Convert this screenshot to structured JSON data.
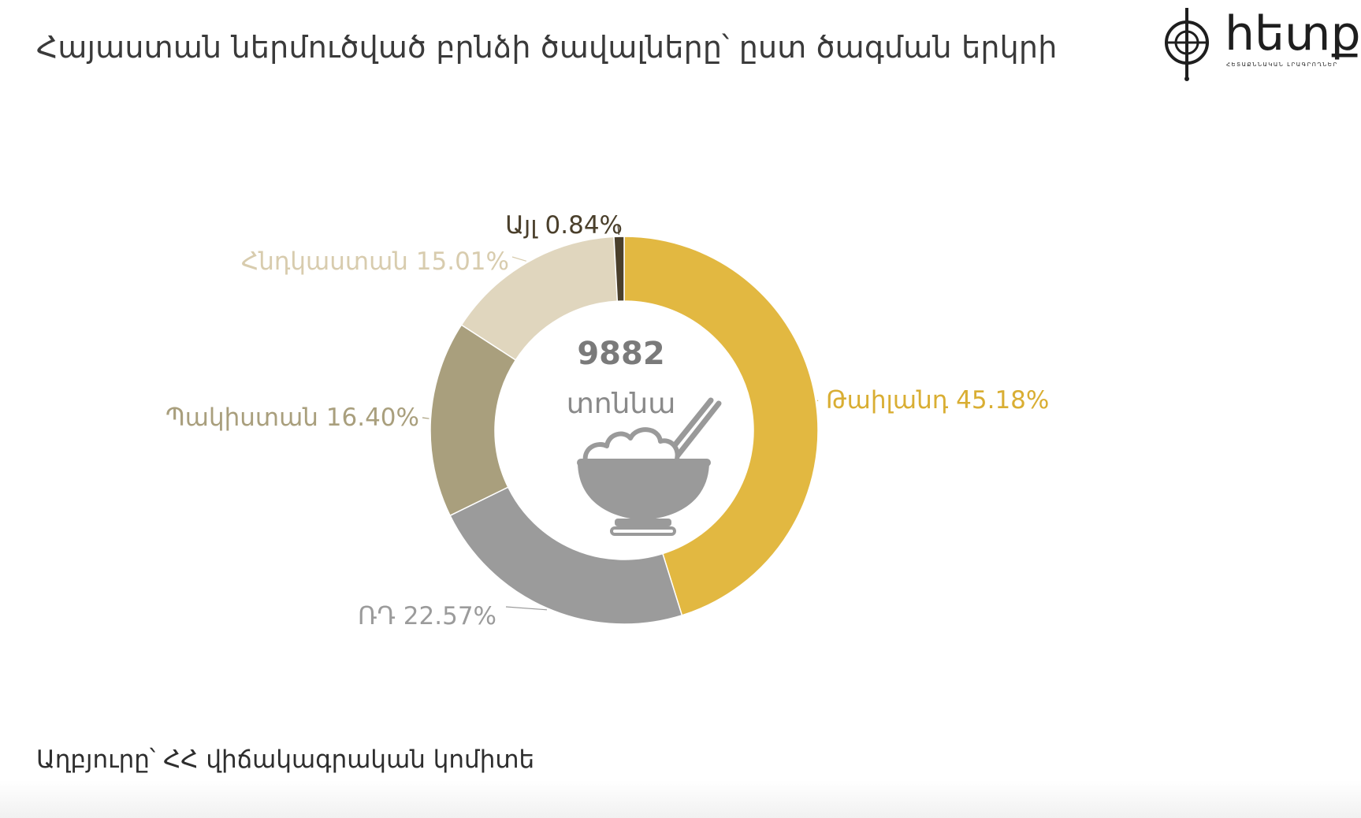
{
  "title": "Հայաստան ներմուծված բրնձի ծավալները՝ ըստ ծագման երկրի",
  "logo": {
    "name": "hetq-logo",
    "text": "hետք",
    "tagline": "ՀԵՏԱՔՆՆԱԿԱՆ ԼՐԱԳՐՈՂՆԵՐ"
  },
  "source": "Աղբյուրը՝ ՀՀ վիճակագրական կոմիտե",
  "colors": {
    "title": "#3a3a3a",
    "background": "#ffffff"
  },
  "chart_data": {
    "type": "pie",
    "variant": "donut",
    "center": {
      "total": "9882",
      "unit": "տոննա",
      "icon": "rice-bowl-icon"
    },
    "slices": [
      {
        "label": "Թաիլանդ",
        "value": 45.18,
        "display": "Թաիլանդ 45.18%",
        "color": "#E2B841"
      },
      {
        "label": "ՌԴ",
        "value": 22.57,
        "display": "ՌԴ 22.57%",
        "color": "#9B9B9B"
      },
      {
        "label": "Պակիստան",
        "value": 16.4,
        "display": "Պակիստան 16.40%",
        "color": "#A99F7D"
      },
      {
        "label": "Հնդկաստան",
        "value": 15.01,
        "display": "Հնդկաստան 15.01%",
        "color": "#E0D6BE"
      },
      {
        "label": "Այլ",
        "value": 0.84,
        "display": "Այլ 0.84%",
        "color": "#4A3F2B"
      }
    ],
    "label_colors": [
      "#D9AE33",
      "#9B9B9B",
      "#A99F7D",
      "#D8CCAE",
      "#4A3F2B"
    ]
  }
}
